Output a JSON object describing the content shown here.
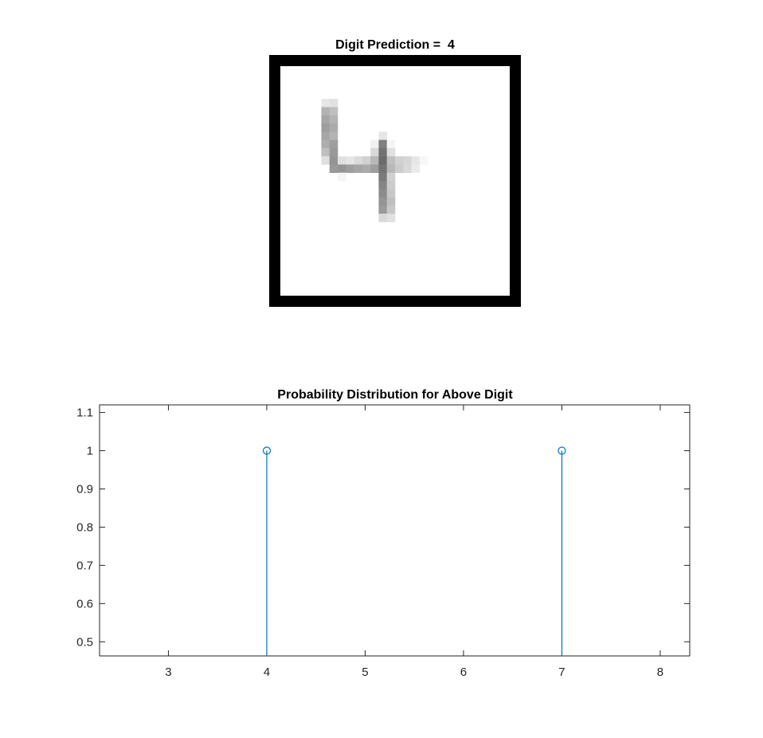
{
  "figure": {
    "image_title": "Digit Prediction =  4",
    "background_color": "#ffffff",
    "frame_color": "#000000",
    "digit_image": {
      "grid_size": 28,
      "description_pixels_note": "grayscale intensity 0 (white) to 1 (dark) of the displayed digit bitmap",
      "pixels": [
        [
          5,
          4,
          0.1
        ],
        [
          6,
          4,
          0.12
        ],
        [
          5,
          5,
          0.3
        ],
        [
          6,
          5,
          0.25
        ],
        [
          5,
          6,
          0.35
        ],
        [
          6,
          6,
          0.3
        ],
        [
          5,
          7,
          0.38
        ],
        [
          6,
          7,
          0.33
        ],
        [
          5,
          8,
          0.35
        ],
        [
          6,
          8,
          0.3
        ],
        [
          12,
          8,
          0.1
        ],
        [
          5,
          9,
          0.32
        ],
        [
          6,
          9,
          0.38
        ],
        [
          11,
          9,
          0.06
        ],
        [
          12,
          9,
          0.5
        ],
        [
          13,
          9,
          0.04
        ],
        [
          5,
          10,
          0.25
        ],
        [
          6,
          10,
          0.4
        ],
        [
          11,
          10,
          0.15
        ],
        [
          12,
          10,
          0.55
        ],
        [
          13,
          10,
          0.12
        ],
        [
          5,
          11,
          0.12
        ],
        [
          6,
          11,
          0.42
        ],
        [
          7,
          11,
          0.12
        ],
        [
          8,
          11,
          0.1
        ],
        [
          9,
          11,
          0.14
        ],
        [
          10,
          11,
          0.18
        ],
        [
          11,
          11,
          0.28
        ],
        [
          12,
          11,
          0.58
        ],
        [
          13,
          11,
          0.25
        ],
        [
          14,
          11,
          0.18
        ],
        [
          15,
          11,
          0.16
        ],
        [
          16,
          11,
          0.1
        ],
        [
          17,
          11,
          0.03
        ],
        [
          6,
          12,
          0.4
        ],
        [
          7,
          12,
          0.42
        ],
        [
          8,
          12,
          0.38
        ],
        [
          9,
          12,
          0.35
        ],
        [
          10,
          12,
          0.33
        ],
        [
          11,
          12,
          0.38
        ],
        [
          12,
          12,
          0.55
        ],
        [
          13,
          12,
          0.28
        ],
        [
          14,
          12,
          0.2
        ],
        [
          15,
          12,
          0.15
        ],
        [
          16,
          12,
          0.08
        ],
        [
          7,
          13,
          0.04
        ],
        [
          12,
          13,
          0.52
        ],
        [
          13,
          13,
          0.18
        ],
        [
          12,
          14,
          0.48
        ],
        [
          13,
          14,
          0.2
        ],
        [
          12,
          15,
          0.45
        ],
        [
          13,
          15,
          0.22
        ],
        [
          12,
          16,
          0.42
        ],
        [
          13,
          16,
          0.25
        ],
        [
          12,
          17,
          0.4
        ],
        [
          13,
          17,
          0.22
        ],
        [
          12,
          18,
          0.15
        ],
        [
          13,
          18,
          0.12
        ]
      ]
    }
  },
  "chart_data": {
    "type": "stem",
    "title": "Probability Distribution for Above Digit",
    "xlabel": "",
    "ylabel": "",
    "xlim": [
      2.3,
      8.3
    ],
    "ylim": [
      0.463,
      1.12
    ],
    "x_ticks": [
      "3",
      "4",
      "5",
      "6",
      "7",
      "8"
    ],
    "x_tick_values": [
      3,
      4,
      5,
      6,
      7,
      8
    ],
    "y_ticks": [
      "0.5",
      "0.6",
      "0.7",
      "0.8",
      "0.9",
      "1",
      "1.1"
    ],
    "y_tick_values": [
      0.5,
      0.6,
      0.7,
      0.8,
      0.9,
      1.0,
      1.1
    ],
    "grid": false,
    "marker": "circle",
    "series_color": "#0072bd",
    "points": [
      {
        "x": 4,
        "y": 1.0
      },
      {
        "x": 7,
        "y": 1.0
      }
    ]
  }
}
